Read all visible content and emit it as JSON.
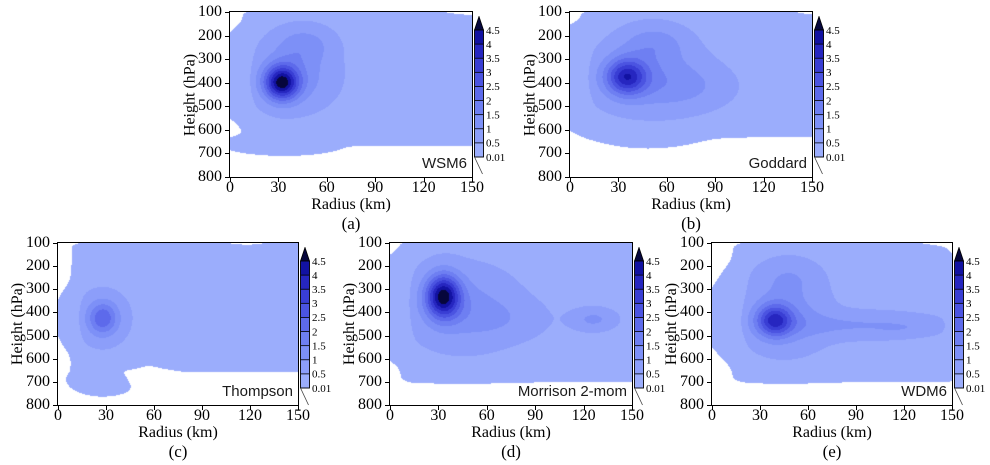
{
  "chart_data": {
    "type": "heatmap",
    "subtype": "filled_contour_multi_panel",
    "x_axis": {
      "label": "Radius (km)",
      "min": 0,
      "max": 150,
      "ticks": [
        0,
        30,
        60,
        90,
        120,
        150
      ],
      "tick_labels": [
        "0",
        "30",
        "60",
        "90",
        "120",
        "150"
      ]
    },
    "y_axis": {
      "label": "Height (hPa)",
      "min": 100,
      "max": 800,
      "orientation": "inverted",
      "ticks": [
        100,
        200,
        300,
        400,
        500,
        600,
        700,
        800
      ],
      "tick_labels": [
        "100",
        "200",
        "300",
        "400",
        "500",
        "600",
        "700",
        "800"
      ]
    },
    "colorbar": {
      "levels": [
        0.01,
        0.5,
        1,
        1.5,
        2,
        2.5,
        3,
        3.5,
        4,
        4.5
      ],
      "labels_top_to_bottom": [
        "4.5",
        "4",
        "3.5",
        "3",
        "2.5",
        "2",
        "1.5",
        "1",
        "0.5",
        "0.01"
      ],
      "band_colors_low_to_high": [
        "#9badfc",
        "#8c9efa",
        "#7d90f7",
        "#6e7ff2",
        "#5d6aeb",
        "#4b54e1",
        "#393ed4",
        "#2626c0",
        "#1212a2"
      ],
      "over_color": "#06063c",
      "under_color": "#ffffff"
    },
    "panels": [
      {
        "letter": "(a)",
        "model": "WSM6",
        "peak": {
          "radius_km": 32,
          "height_hPa": 400,
          "max_value": 4.9
        },
        "field_bumps": [
          {
            "t": "box",
            "r0": 13,
            "r1": 152,
            "p0": 106,
            "p1": 652,
            "er": 5,
            "ep": 18,
            "a": 0.32
          },
          {
            "t": "g",
            "r": 33,
            "p": 660,
            "sr": 22,
            "sp": 28,
            "a": 0.22
          },
          {
            "t": "g",
            "r": 40,
            "p": 370,
            "sr": 24,
            "sp": 135,
            "a": 0.95
          },
          {
            "t": "g",
            "r": 46,
            "p": 235,
            "sr": 17,
            "sp": 75,
            "a": 0.75
          },
          {
            "t": "g",
            "r": 32,
            "p": 400,
            "sr": 10.5,
            "sp": 72,
            "a": 3.8
          },
          {
            "t": "g",
            "r": 148,
            "p": 103,
            "sr": 12,
            "sp": 16,
            "a": -0.3
          }
        ]
      },
      {
        "letter": "(b)",
        "model": "Goddard",
        "peak": {
          "radius_km": 35,
          "height_hPa": 375,
          "max_value": 4.1
        },
        "field_bumps": [
          {
            "t": "box",
            "r0": 12,
            "r1": 152,
            "p0": 106,
            "p1": 618,
            "er": 5,
            "ep": 16,
            "a": 0.3
          },
          {
            "t": "g",
            "r": 48,
            "p": 380,
            "sr": 34,
            "sp": 140,
            "a": 0.95
          },
          {
            "t": "g",
            "r": 75,
            "p": 420,
            "sr": 28,
            "sp": 95,
            "a": 0.45
          },
          {
            "t": "g",
            "r": 52,
            "p": 230,
            "sr": 20,
            "sp": 80,
            "a": 0.8
          },
          {
            "t": "g",
            "r": 35,
            "p": 375,
            "sr": 12.5,
            "sp": 75,
            "a": 2.9
          },
          {
            "t": "g",
            "r": 150,
            "p": 102,
            "sr": 8,
            "sp": 12,
            "a": -0.25
          }
        ]
      },
      {
        "letter": "(c)",
        "model": "Thompson",
        "peak": {
          "radius_km": 28,
          "height_hPa": 425,
          "max_value": 2.5
        },
        "field_bumps": [
          {
            "t": "box",
            "r0": 13,
            "r1": 152,
            "p0": 112,
            "p1": 645,
            "er": 5,
            "ep": 16,
            "a": 0.36
          },
          {
            "t": "g",
            "r": 28,
            "p": 690,
            "sr": 13,
            "sp": 42,
            "a": 0.22
          },
          {
            "t": "g",
            "r": 57,
            "p": 650,
            "sr": 11,
            "sp": 45,
            "a": -0.4
          },
          {
            "t": "g",
            "r": 28,
            "p": 425,
            "sr": 15,
            "sp": 105,
            "a": 0.55
          },
          {
            "t": "g",
            "r": 28,
            "p": 425,
            "sr": 9,
            "sp": 70,
            "a": 1.55
          },
          {
            "t": "g",
            "r": 118,
            "p": 100,
            "sr": 7,
            "sp": 9,
            "a": -0.13
          }
        ]
      },
      {
        "letter": "(d)",
        "model": "Morrison 2-mom",
        "peak": {
          "radius_km": 33,
          "height_hPa": 330,
          "max_value": 4.9
        },
        "field_bumps": [
          {
            "t": "box",
            "r0": 12,
            "r1": 152,
            "p0": 104,
            "p1": 688,
            "er": 5,
            "ep": 16,
            "a": 0.36
          },
          {
            "t": "g",
            "r": 45,
            "p": 380,
            "sr": 30,
            "sp": 155,
            "a": 0.85
          },
          {
            "t": "g",
            "r": 72,
            "p": 430,
            "sr": 26,
            "sp": 85,
            "a": 0.35
          },
          {
            "t": "g",
            "r": 33,
            "p": 330,
            "sr": 10.5,
            "sp": 92,
            "a": 3.9
          },
          {
            "t": "g",
            "r": 126,
            "p": 430,
            "sr": 13,
            "sp": 45,
            "a": 0.75
          },
          {
            "t": "g",
            "r": 56,
            "p": 98,
            "sr": 6,
            "sp": 8,
            "a": -0.12
          }
        ]
      },
      {
        "letter": "(e)",
        "model": "WDM6",
        "peak": {
          "radius_km": 39,
          "height_hPa": 435,
          "max_value": 3.9
        },
        "field_bumps": [
          {
            "t": "box",
            "r0": 19,
            "r1": 148,
            "p0": 112,
            "p1": 688,
            "er": 6,
            "ep": 16,
            "a": 0.36
          },
          {
            "t": "g",
            "r": 46,
            "p": 420,
            "sr": 24,
            "sp": 135,
            "a": 0.9
          },
          {
            "t": "g",
            "r": 48,
            "p": 250,
            "sr": 18,
            "sp": 80,
            "a": 0.55
          },
          {
            "t": "g",
            "r": 92,
            "p": 455,
            "sr": 48,
            "sp": 55,
            "a": 0.65
          },
          {
            "t": "g",
            "r": 115,
            "p": 470,
            "sr": 12,
            "sp": 30,
            "a": 0.18
          },
          {
            "t": "g",
            "r": 129,
            "p": 465,
            "sr": 10,
            "sp": 28,
            "a": 0.15
          },
          {
            "t": "g",
            "r": 39,
            "p": 435,
            "sr": 11,
            "sp": 68,
            "a": 2.6
          },
          {
            "t": "g",
            "r": 150,
            "p": 112,
            "sr": 11,
            "sp": 26,
            "a": -0.3
          }
        ]
      }
    ]
  }
}
